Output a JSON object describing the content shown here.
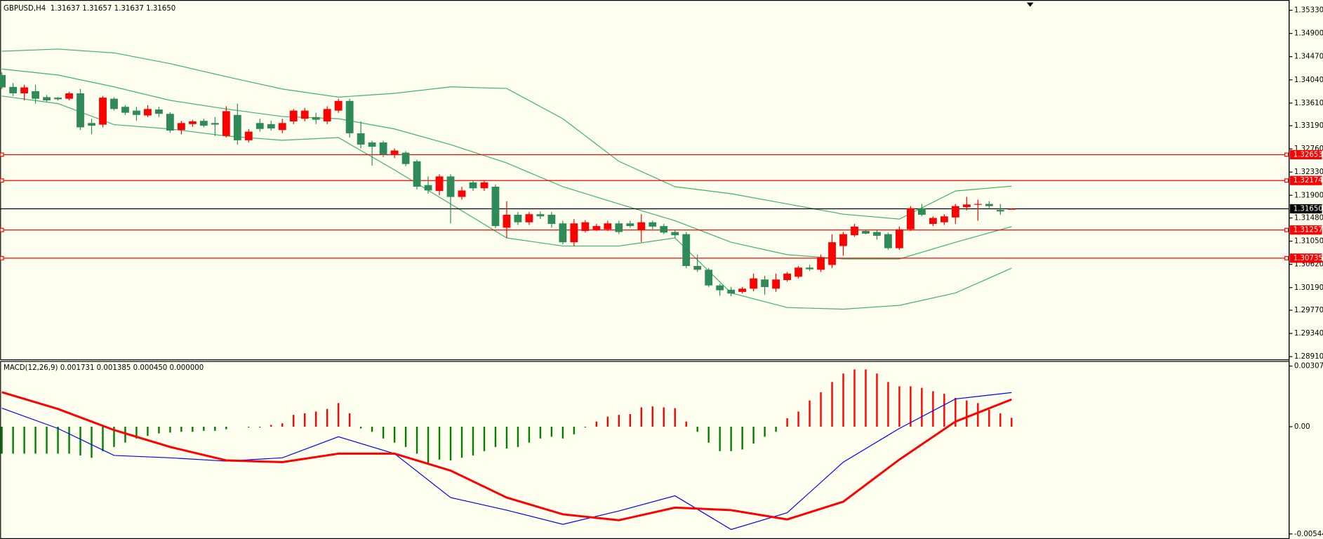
{
  "chart_data": [
    {
      "type": "candlestick",
      "title": "GBPUSD,H4  1.31637 1.31657 1.31637 1.31650",
      "up_color": "#ff0000",
      "down_color": "#2e8b57",
      "open": [
        1.3413,
        1.3391,
        1.3379,
        1.3383,
        1.3372,
        1.3371,
        1.3369,
        1.3379,
        1.3324,
        1.3321,
        1.3369,
        1.3354,
        1.3347,
        1.3338,
        1.3349,
        1.3341,
        1.3311,
        1.3322,
        1.3328,
        1.3324,
        1.33,
        1.3339,
        1.3292,
        1.3324,
        1.3322,
        1.3311,
        1.3327,
        1.3332,
        1.3335,
        1.3327,
        1.3347,
        1.3365,
        1.3305,
        1.3288,
        1.3288,
        1.3266,
        1.3269,
        1.3253,
        1.3209,
        1.3198,
        1.3225,
        1.3187,
        1.3214,
        1.3203,
        1.3206,
        1.313,
        1.3154,
        1.314,
        1.3155,
        1.3154,
        1.3138,
        1.3103,
        1.3124,
        1.3126,
        1.3127,
        1.3138,
        1.3138,
        1.3126,
        1.314,
        1.3133,
        1.3122,
        1.3118,
        1.3059,
        1.3052,
        1.3023,
        1.3015,
        1.3011,
        1.3017,
        1.3034,
        1.3017,
        1.3033,
        1.3039,
        1.3056,
        1.3052,
        1.3061,
        1.3096,
        1.3116,
        1.3124,
        1.3122,
        1.3118,
        1.3092,
        1.3127,
        1.3166,
        1.3137,
        1.314,
        1.3149,
        1.3168,
        1.3173,
        1.3174,
        1.3163,
        1.31637
      ],
      "high": [
        1.3418,
        1.3398,
        1.3395,
        1.3395,
        1.3376,
        1.3372,
        1.3382,
        1.3387,
        1.3332,
        1.3374,
        1.3372,
        1.3357,
        1.3354,
        1.3357,
        1.3354,
        1.3344,
        1.3328,
        1.333,
        1.3332,
        1.3335,
        1.3355,
        1.336,
        1.3313,
        1.3332,
        1.3328,
        1.3332,
        1.335,
        1.3352,
        1.3343,
        1.3355,
        1.3369,
        1.3369,
        1.3327,
        1.3291,
        1.3291,
        1.3277,
        1.3272,
        1.3256,
        1.3225,
        1.3229,
        1.3229,
        1.3206,
        1.3218,
        1.3218,
        1.321,
        1.3179,
        1.3159,
        1.3159,
        1.316,
        1.3159,
        1.3143,
        1.3146,
        1.3144,
        1.3137,
        1.3143,
        1.3143,
        1.3143,
        1.3155,
        1.3143,
        1.3137,
        1.3127,
        1.3122,
        1.308,
        1.3055,
        1.3026,
        1.302,
        1.302,
        1.3045,
        1.3041,
        1.3045,
        1.3048,
        1.3059,
        1.3061,
        1.308,
        1.3118,
        1.3122,
        1.3137,
        1.3127,
        1.3127,
        1.3121,
        1.3132,
        1.317,
        1.3174,
        1.3151,
        1.3155,
        1.3174,
        1.3187,
        1.3182,
        1.3179,
        1.3174,
        1.31657
      ],
      "low": [
        1.3387,
        1.3374,
        1.3366,
        1.336,
        1.3363,
        1.3366,
        1.3366,
        1.3311,
        1.3303,
        1.3316,
        1.3347,
        1.3339,
        1.3328,
        1.3335,
        1.3335,
        1.3306,
        1.3303,
        1.3317,
        1.3316,
        1.33,
        1.3297,
        1.3284,
        1.3288,
        1.3308,
        1.331,
        1.3305,
        1.3322,
        1.3327,
        1.3322,
        1.3322,
        1.3343,
        1.3297,
        1.3277,
        1.3245,
        1.3261,
        1.3259,
        1.3244,
        1.3201,
        1.3193,
        1.319,
        1.3138,
        1.3182,
        1.3198,
        1.3198,
        1.3129,
        1.3111,
        1.3135,
        1.3135,
        1.3146,
        1.313,
        1.3099,
        1.3096,
        1.3121,
        1.3124,
        1.3124,
        1.3118,
        1.313,
        1.3103,
        1.3127,
        1.3118,
        1.3111,
        1.3055,
        1.3048,
        1.302,
        1.3004,
        1.3003,
        1.3008,
        1.3012,
        1.3006,
        1.3011,
        1.303,
        1.3036,
        1.305,
        1.3048,
        1.3055,
        1.3078,
        1.3113,
        1.3118,
        1.3108,
        1.3089,
        1.3089,
        1.3124,
        1.3151,
        1.3133,
        1.3135,
        1.3137,
        1.3162,
        1.3143,
        1.3166,
        1.3154,
        1.31637
      ],
      "close": [
        1.339,
        1.3379,
        1.339,
        1.3369,
        1.3366,
        1.3368,
        1.3379,
        1.3316,
        1.3319,
        1.3371,
        1.335,
        1.3343,
        1.3339,
        1.335,
        1.3341,
        1.331,
        1.3324,
        1.3327,
        1.3319,
        1.3321,
        1.3346,
        1.3292,
        1.3308,
        1.3313,
        1.3314,
        1.3324,
        1.3347,
        1.3347,
        1.333,
        1.335,
        1.3365,
        1.3305,
        1.3284,
        1.328,
        1.3266,
        1.3273,
        1.3248,
        1.3206,
        1.3199,
        1.3225,
        1.3187,
        1.3199,
        1.3203,
        1.3214,
        1.3133,
        1.3154,
        1.314,
        1.3155,
        1.3151,
        1.3137,
        1.3103,
        1.3138,
        1.314,
        1.3133,
        1.3138,
        1.3122,
        1.3133,
        1.314,
        1.3132,
        1.3121,
        1.3116,
        1.3059,
        1.3052,
        1.3023,
        1.3014,
        1.3008,
        1.3017,
        1.3036,
        1.302,
        1.3034,
        1.3045,
        1.3056,
        1.3053,
        1.3075,
        1.3103,
        1.3118,
        1.3132,
        1.3119,
        1.3115,
        1.3092,
        1.3127,
        1.3166,
        1.3154,
        1.3148,
        1.3151,
        1.317,
        1.3173,
        1.3174,
        1.317,
        1.316,
        1.3165
      ],
      "bands": {
        "color": "#3cb371",
        "x": [
          0,
          5,
          10,
          15,
          20,
          25,
          30,
          35,
          40,
          45,
          50,
          55,
          60,
          65,
          70,
          75,
          80,
          85,
          90
        ],
        "upper": [
          1.3457,
          1.3461,
          1.3454,
          1.3434,
          1.341,
          1.3387,
          1.3372,
          1.3379,
          1.3391,
          1.3388,
          1.3332,
          1.3253,
          1.3206,
          1.3193,
          1.3174,
          1.3155,
          1.3146,
          1.3198,
          1.3207
        ],
        "middle": [
          1.3424,
          1.3413,
          1.3391,
          1.3366,
          1.335,
          1.3336,
          1.3332,
          1.3313,
          1.3284,
          1.325,
          1.3206,
          1.3174,
          1.3143,
          1.3103,
          1.308,
          1.3072,
          1.3072,
          1.3103,
          1.3132
        ],
        "lower": [
          1.3374,
          1.336,
          1.3321,
          1.3313,
          1.33,
          1.3292,
          1.3297,
          1.3237,
          1.3174,
          1.3111,
          1.3096,
          1.3096,
          1.3111,
          1.3009,
          1.2982,
          1.2979,
          1.2986,
          1.3009,
          1.3055
        ]
      },
      "levels": [
        {
          "value": 1.32653,
          "label": "1.32653",
          "color": "#ff0000"
        },
        {
          "value": 1.32174,
          "label": "1.32174",
          "color": "#ff0000"
        },
        {
          "value": 1.31257,
          "label": "1.31257",
          "color": "#ff0000"
        },
        {
          "value": 1.30735,
          "label": "1.30735",
          "color": "#ff0000"
        },
        {
          "value": 1.3165,
          "label": "1.31650",
          "color": "#000000"
        }
      ],
      "ylim": [
        1.2886,
        1.3552
      ],
      "yticks": [
        {
          "value": 1.3533,
          "label": "1.35330"
        },
        {
          "value": 1.349,
          "label": "1.34900"
        },
        {
          "value": 1.3447,
          "label": "1.34470"
        },
        {
          "value": 1.3404,
          "label": "1.34040"
        },
        {
          "value": 1.3361,
          "label": "1.33610"
        },
        {
          "value": 1.3319,
          "label": "1.33190"
        },
        {
          "value": 1.3276,
          "label": "1.32760"
        },
        {
          "value": 1.3233,
          "label": "1.32330"
        },
        {
          "value": 1.319,
          "label": "1.31900"
        },
        {
          "value": 1.3148,
          "label": "1.31480"
        },
        {
          "value": 1.3105,
          "label": "1.31050"
        },
        {
          "value": 1.3062,
          "label": "1.30620"
        },
        {
          "value": 1.3019,
          "label": "1.30190"
        },
        {
          "value": 1.2977,
          "label": "1.29770"
        },
        {
          "value": 1.2934,
          "label": "1.29340"
        },
        {
          "value": 1.2891,
          "label": "1.28910"
        }
      ]
    },
    {
      "type": "macd",
      "title": "MACD(12,26,9) 0.001731 0.001385 0.000450 0.000000",
      "histogram": {
        "up_color": "#ff0000",
        "down_color": "#008000",
        "values": [
          -0.00137,
          -0.00137,
          -0.00137,
          -0.00137,
          -0.00137,
          -0.00137,
          -0.00137,
          -0.00146,
          -0.00158,
          -0.00124,
          -0.00103,
          -0.00081,
          -0.0006,
          -0.00047,
          -0.00034,
          -0.0003,
          -0.00026,
          -0.00026,
          -0.00021,
          -0.00021,
          -0.00013,
          0,
          -4e-05,
          -4e-05,
          9e-05,
          0.00017,
          0.0006,
          0.00068,
          0.00077,
          0.0009,
          0.0012,
          0.00068,
          -9e-05,
          -0.00026,
          -0.0006,
          -0.00081,
          -0.00103,
          -0.00137,
          -0.00188,
          -0.00167,
          -0.00171,
          -0.00158,
          -0.00146,
          -0.00124,
          -0.00103,
          -0.00111,
          -0.00103,
          -0.00081,
          -0.0006,
          -0.00051,
          -0.0006,
          -0.00039,
          -4e-05,
          0.00026,
          0.00051,
          0.0006,
          0.00064,
          0.00098,
          0.00103,
          0.00098,
          0.00094,
          0.00026,
          -0.00026,
          -0.00081,
          -0.00124,
          -0.00124,
          -0.00116,
          -0.00086,
          -0.00051,
          -0.00026,
          0.00043,
          0.00077,
          0.00133,
          0.00175,
          0.00227,
          0.0027,
          0.00291,
          0.00291,
          0.0027,
          0.00227,
          0.00205,
          0.00205,
          0.00197,
          0.0018,
          0.00167,
          0.00146,
          0.00133,
          0.0012,
          0.00086,
          0.00068,
          0.00045
        ]
      },
      "series": [
        {
          "color": "#0000ff",
          "width": 1,
          "x": [
            0,
            5,
            10,
            15,
            20,
            25,
            30,
            35,
            40,
            45,
            50,
            55,
            60,
            65,
            70,
            75,
            80,
            85,
            90
          ],
          "values": [
            0.00094,
            -9e-05,
            -0.00146,
            -0.00158,
            -0.00175,
            -0.00158,
            -0.00051,
            -0.00137,
            -0.0036,
            -0.00424,
            -0.00496,
            -0.00428,
            -0.00351,
            -0.00522,
            -0.00437,
            -0.0018,
            -9e-05,
            0.00141,
            0.001731
          ]
        },
        {
          "color": "#ff0000",
          "width": 2.5,
          "x": [
            0,
            5,
            10,
            15,
            20,
            25,
            30,
            35,
            40,
            45,
            50,
            55,
            60,
            65,
            70,
            75,
            80,
            85,
            90
          ],
          "values": [
            0.00175,
            0.0009,
            -0.00017,
            -0.00103,
            -0.00171,
            -0.0018,
            -0.00137,
            -0.00137,
            -0.00223,
            -0.0036,
            -0.00445,
            -0.00475,
            -0.00411,
            -0.00424,
            -0.00471,
            -0.00381,
            -0.00167,
            0.00026,
            0.001385
          ]
        }
      ],
      "ylim": [
        -0.005447,
        0.003078
      ],
      "yticks": [
        0.003078,
        {
          "value": 0,
          "label": "0.00"
        },
        -0.005447
      ]
    }
  ]
}
